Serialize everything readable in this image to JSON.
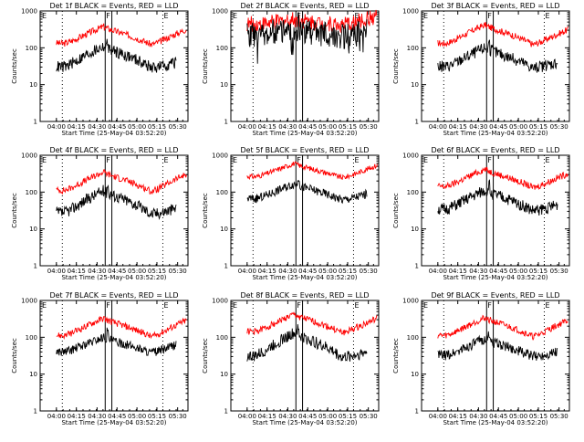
{
  "chart_data": [
    {
      "type": "line",
      "title": "Det 1f BLACK = Events, RED = LLD",
      "xlabel": "Start Time (25-May-04 03:52:20)",
      "ylabel": "Counts/sec",
      "y_scale": "log",
      "ylim": [
        1,
        1000
      ],
      "x_tick_labels": [
        "04:00",
        "04:15",
        "04:30",
        "04:45",
        "05:00",
        "05:15",
        "05:30"
      ],
      "y_tick_labels": [
        "1",
        "10",
        "100",
        "1000"
      ],
      "flags": [
        "E",
        "F",
        "E"
      ],
      "series": [
        {
          "color": "#ff0000",
          "baseline": 130,
          "peak": 380,
          "end": 330,
          "noise": 0.09,
          "spikes": false
        },
        {
          "color": "#000000",
          "baseline": 30,
          "peak": 110,
          "end": 50,
          "noise": 0.16,
          "spikes": false
        }
      ]
    },
    {
      "type": "line",
      "title": "Det 2f BLACK = Events, RED = LLD",
      "xlabel": "Start Time (25-May-04 03:52:20)",
      "ylabel": "Counts/sec",
      "y_scale": "log",
      "ylim": [
        1,
        1000
      ],
      "x_tick_labels": [
        "04:00",
        "04:15",
        "04:30",
        "04:45",
        "05:00",
        "05:15",
        "05:30"
      ],
      "y_tick_labels": [
        "1",
        "10",
        "100",
        "1000"
      ],
      "flags": [
        "E",
        "F",
        "E"
      ],
      "series": [
        {
          "color": "#ff0000",
          "baseline": 430,
          "peak": 600,
          "end": 750,
          "noise": 0.22,
          "spikes": false
        },
        {
          "color": "#000000",
          "baseline": 220,
          "peak": 330,
          "end": 330,
          "noise": 0.35,
          "spikes": true
        }
      ]
    },
    {
      "type": "line",
      "title": "Det 3f BLACK = Events, RED = LLD",
      "xlabel": "Start Time (25-May-04 03:52:20)",
      "ylabel": "Counts/sec",
      "y_scale": "log",
      "ylim": [
        1,
        1000
      ],
      "x_tick_labels": [
        "04:00",
        "04:15",
        "04:30",
        "04:45",
        "05:00",
        "05:15",
        "05:30"
      ],
      "y_tick_labels": [
        "1",
        "10",
        "100",
        "1000"
      ],
      "flags": [
        "E",
        "F",
        "E"
      ],
      "series": [
        {
          "color": "#ff0000",
          "baseline": 130,
          "peak": 420,
          "end": 320,
          "noise": 0.09,
          "spikes": false
        },
        {
          "color": "#000000",
          "baseline": 30,
          "peak": 100,
          "end": 50,
          "noise": 0.16,
          "spikes": false
        }
      ]
    },
    {
      "type": "line",
      "title": "Det 4f BLACK = Events, RED = LLD",
      "xlabel": "Start Time (25-May-04 03:52:20)",
      "ylabel": "Counts/sec",
      "y_scale": "log",
      "ylim": [
        1,
        1000
      ],
      "x_tick_labels": [
        "04:00",
        "04:15",
        "04:30",
        "04:45",
        "05:00",
        "05:15",
        "05:30"
      ],
      "y_tick_labels": [
        "1",
        "10",
        "100",
        "1000"
      ],
      "flags": [
        "E",
        "F",
        "E"
      ],
      "series": [
        {
          "color": "#ff0000",
          "baseline": 110,
          "peak": 350,
          "end": 320,
          "noise": 0.09,
          "spikes": false
        },
        {
          "color": "#000000",
          "baseline": 27,
          "peak": 110,
          "end": 45,
          "noise": 0.16,
          "spikes": false
        }
      ]
    },
    {
      "type": "line",
      "title": "Det 5f BLACK = Events, RED = LLD",
      "xlabel": "Start Time (25-May-04 03:52:20)",
      "ylabel": "Counts/sec",
      "y_scale": "log",
      "ylim": [
        1,
        1000
      ],
      "x_tick_labels": [
        "04:00",
        "04:15",
        "04:30",
        "04:45",
        "05:00",
        "05:15",
        "05:30"
      ],
      "y_tick_labels": [
        "1",
        "10",
        "100",
        "1000"
      ],
      "flags": [
        "E",
        "F",
        "E"
      ],
      "series": [
        {
          "color": "#ff0000",
          "baseline": 260,
          "peak": 600,
          "end": 550,
          "noise": 0.07,
          "spikes": false
        },
        {
          "color": "#000000",
          "baseline": 65,
          "peak": 170,
          "end": 110,
          "noise": 0.12,
          "spikes": false
        }
      ]
    },
    {
      "type": "line",
      "title": "Det 6f BLACK = Events, RED = LLD",
      "xlabel": "Start Time (25-May-04 03:52:20)",
      "ylabel": "Counts/sec",
      "y_scale": "log",
      "ylim": [
        1,
        1000
      ],
      "x_tick_labels": [
        "04:00",
        "04:15",
        "04:30",
        "04:45",
        "05:00",
        "05:15",
        "05:30"
      ],
      "y_tick_labels": [
        "1",
        "10",
        "100",
        "1000"
      ],
      "flags": [
        "E",
        "F",
        "E"
      ],
      "series": [
        {
          "color": "#ff0000",
          "baseline": 140,
          "peak": 420,
          "end": 330,
          "noise": 0.09,
          "spikes": false
        },
        {
          "color": "#000000",
          "baseline": 33,
          "peak": 110,
          "end": 55,
          "noise": 0.16,
          "spikes": false
        }
      ]
    },
    {
      "type": "line",
      "title": "Det 7f BLACK = Events, RED = LLD",
      "xlabel": "Start Time (25-May-04 03:52:20)",
      "ylabel": "Counts/sec",
      "y_scale": "log",
      "ylim": [
        1,
        1000
      ],
      "x_tick_labels": [
        "04:00",
        "04:15",
        "04:30",
        "04:45",
        "05:00",
        "05:15",
        "05:30"
      ],
      "y_tick_labels": [
        "1",
        "10",
        "100",
        "1000"
      ],
      "flags": [
        "E",
        "F",
        "E"
      ],
      "series": [
        {
          "color": "#ff0000",
          "baseline": 110,
          "peak": 330,
          "end": 300,
          "noise": 0.09,
          "spikes": false
        },
        {
          "color": "#000000",
          "baseline": 40,
          "peak": 100,
          "end": 80,
          "noise": 0.12,
          "spikes": false
        }
      ]
    },
    {
      "type": "line",
      "title": "Det 8f BLACK = Events, RED = LLD",
      "xlabel": "Start Time (25-May-04 03:52:20)",
      "ylabel": "Counts/sec",
      "y_scale": "log",
      "ylim": [
        1,
        1000
      ],
      "x_tick_labels": [
        "04:00",
        "04:15",
        "04:30",
        "04:45",
        "05:00",
        "05:15",
        "05:30"
      ],
      "y_tick_labels": [
        "1",
        "10",
        "100",
        "1000"
      ],
      "flags": [
        "E",
        "F",
        "E"
      ],
      "series": [
        {
          "color": "#ff0000",
          "baseline": 140,
          "peak": 420,
          "end": 330,
          "noise": 0.09,
          "spikes": false
        },
        {
          "color": "#000000",
          "baseline": 30,
          "peak": 130,
          "end": 50,
          "noise": 0.16,
          "spikes": false
        }
      ]
    },
    {
      "type": "line",
      "title": "Det 9f BLACK = Events, RED = LLD",
      "xlabel": "Start Time (25-May-04 03:52:20)",
      "ylabel": "Counts/sec",
      "y_scale": "log",
      "ylim": [
        1,
        1000
      ],
      "x_tick_labels": [
        "04:00",
        "04:15",
        "04:30",
        "04:45",
        "05:00",
        "05:15",
        "05:30"
      ],
      "y_tick_labels": [
        "1",
        "10",
        "100",
        "1000"
      ],
      "flags": [
        "E",
        "F",
        "E"
      ],
      "series": [
        {
          "color": "#ff0000",
          "baseline": 110,
          "peak": 340,
          "end": 300,
          "noise": 0.09,
          "spikes": false
        },
        {
          "color": "#000000",
          "baseline": 32,
          "peak": 90,
          "end": 50,
          "noise": 0.14,
          "spikes": false
        }
      ]
    }
  ]
}
